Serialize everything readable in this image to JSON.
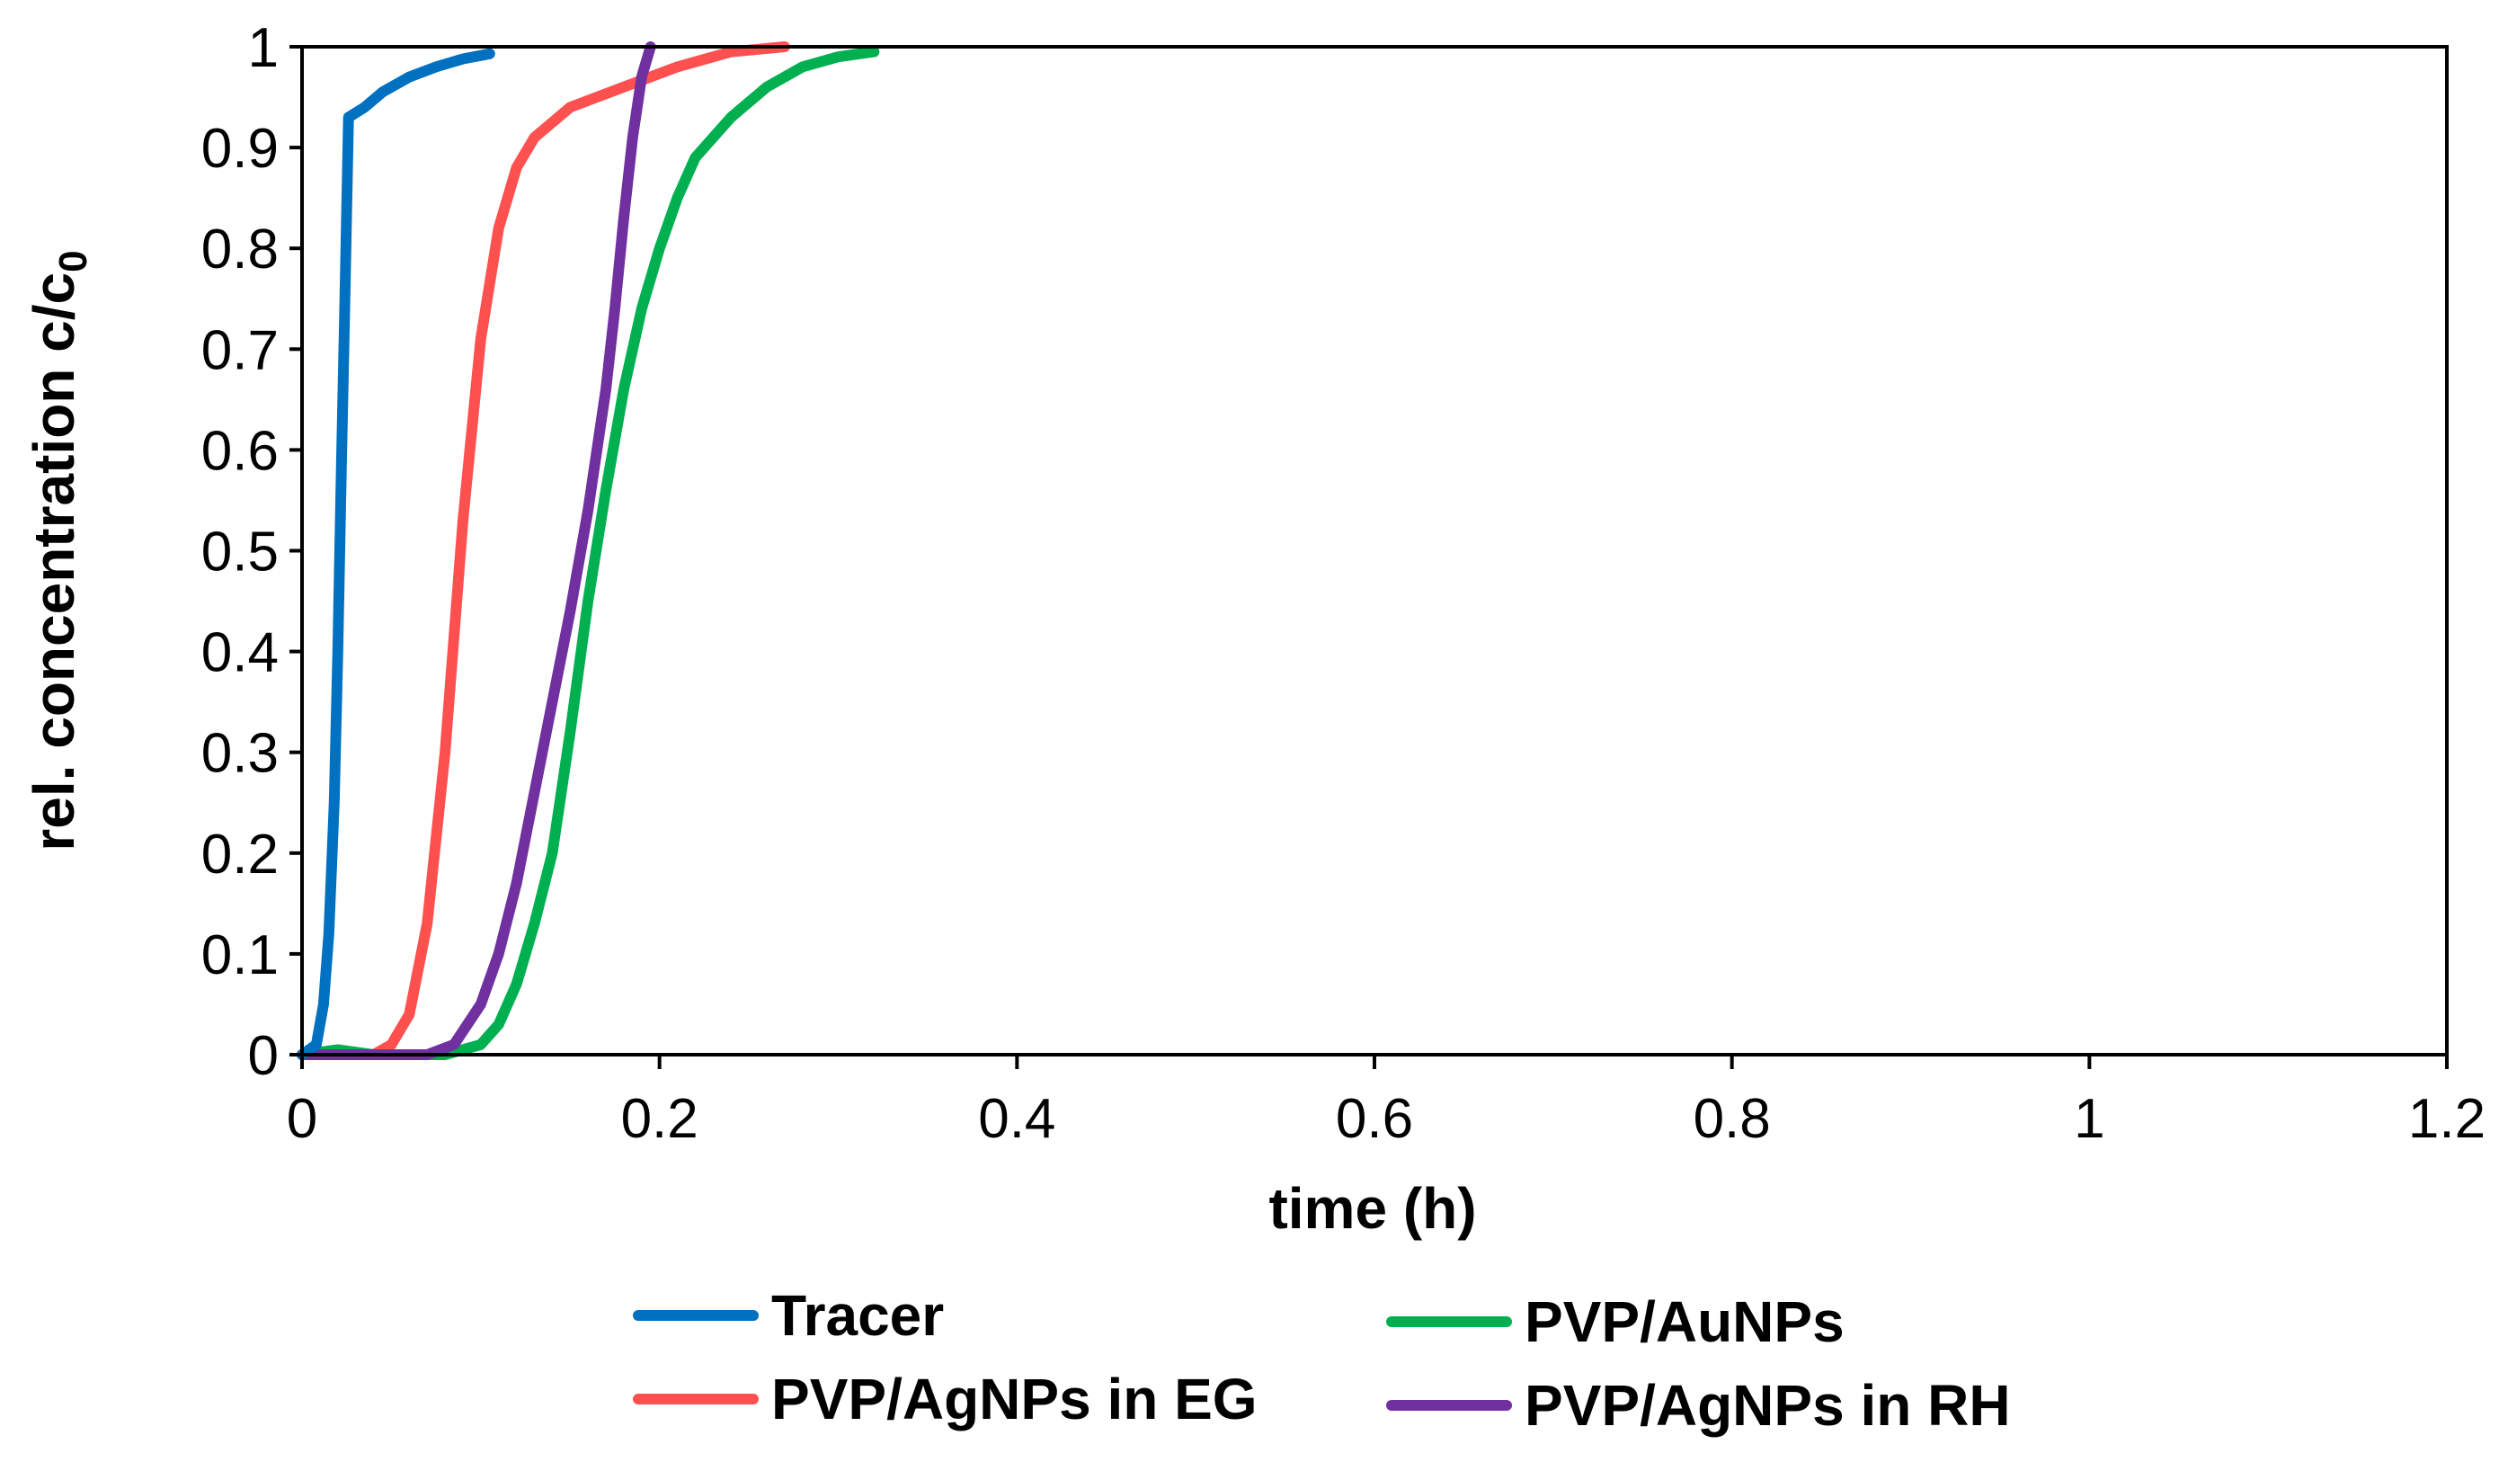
{
  "chart_data": {
    "type": "line",
    "title": "",
    "xlabel": "time (h)",
    "ylabel": "rel. concentration c/c",
    "ylabel_subscript": "0",
    "xlim": [
      0,
      1.2
    ],
    "ylim": [
      0,
      1
    ],
    "x_ticks": [
      "0",
      "0.2",
      "0.4",
      "0.6",
      "0.8",
      "1",
      "1.2"
    ],
    "y_ticks": [
      "0",
      "0.1",
      "0.2",
      "0.3",
      "0.4",
      "0.5",
      "0.6",
      "0.7",
      "0.8",
      "0.9",
      "1"
    ],
    "grid": false,
    "legend_position": "bottom",
    "series": [
      {
        "name": "Tracer",
        "color": "#0070C0",
        "points": [
          [
            0,
            0
          ],
          [
            0.008,
            0.01
          ],
          [
            0.012,
            0.05
          ],
          [
            0.015,
            0.12
          ],
          [
            0.018,
            0.25
          ],
          [
            0.02,
            0.4
          ],
          [
            0.022,
            0.58
          ],
          [
            0.024,
            0.75
          ],
          [
            0.026,
            0.93
          ],
          [
            0.035,
            0.94
          ],
          [
            0.045,
            0.955
          ],
          [
            0.06,
            0.97
          ],
          [
            0.075,
            0.98
          ],
          [
            0.09,
            0.988
          ],
          [
            0.105,
            0.993
          ]
        ]
      },
      {
        "name": "PVP/AuNPs",
        "color": "#00B050",
        "points": [
          [
            0,
            0
          ],
          [
            0.02,
            0.005
          ],
          [
            0.04,
            0.0
          ],
          [
            0.08,
            0.0
          ],
          [
            0.1,
            0.01
          ],
          [
            0.11,
            0.03
          ],
          [
            0.12,
            0.07
          ],
          [
            0.13,
            0.13
          ],
          [
            0.14,
            0.2
          ],
          [
            0.15,
            0.32
          ],
          [
            0.16,
            0.45
          ],
          [
            0.17,
            0.56
          ],
          [
            0.18,
            0.66
          ],
          [
            0.19,
            0.74
          ],
          [
            0.2,
            0.8
          ],
          [
            0.21,
            0.85
          ],
          [
            0.22,
            0.89
          ],
          [
            0.24,
            0.93
          ],
          [
            0.26,
            0.96
          ],
          [
            0.28,
            0.98
          ],
          [
            0.3,
            0.99
          ],
          [
            0.32,
            0.995
          ]
        ]
      },
      {
        "name": "PVP/AgNPs in EG",
        "color": "#FF5050",
        "points": [
          [
            0,
            0
          ],
          [
            0.04,
            0.0
          ],
          [
            0.05,
            0.01
          ],
          [
            0.06,
            0.04
          ],
          [
            0.07,
            0.13
          ],
          [
            0.08,
            0.3
          ],
          [
            0.09,
            0.53
          ],
          [
            0.1,
            0.71
          ],
          [
            0.11,
            0.82
          ],
          [
            0.12,
            0.88
          ],
          [
            0.13,
            0.91
          ],
          [
            0.15,
            0.94
          ],
          [
            0.18,
            0.96
          ],
          [
            0.21,
            0.98
          ],
          [
            0.24,
            0.995
          ],
          [
            0.27,
            1.0
          ]
        ]
      },
      {
        "name": "PVP/AgNPs in RH",
        "color": "#7030A0",
        "points": [
          [
            0,
            0
          ],
          [
            0.07,
            0.0
          ],
          [
            0.085,
            0.01
          ],
          [
            0.1,
            0.05
          ],
          [
            0.11,
            0.1
          ],
          [
            0.12,
            0.17
          ],
          [
            0.13,
            0.26
          ],
          [
            0.14,
            0.35
          ],
          [
            0.15,
            0.44
          ],
          [
            0.16,
            0.54
          ],
          [
            0.17,
            0.66
          ],
          [
            0.175,
            0.74
          ],
          [
            0.18,
            0.83
          ],
          [
            0.185,
            0.91
          ],
          [
            0.19,
            0.97
          ],
          [
            0.195,
            1.0
          ]
        ]
      }
    ]
  },
  "legend": {
    "rows": [
      [
        "Tracer",
        "PVP/AuNPs"
      ],
      [
        "PVP/AgNPs in EG",
        "PVP/AgNPs in RH"
      ]
    ]
  }
}
